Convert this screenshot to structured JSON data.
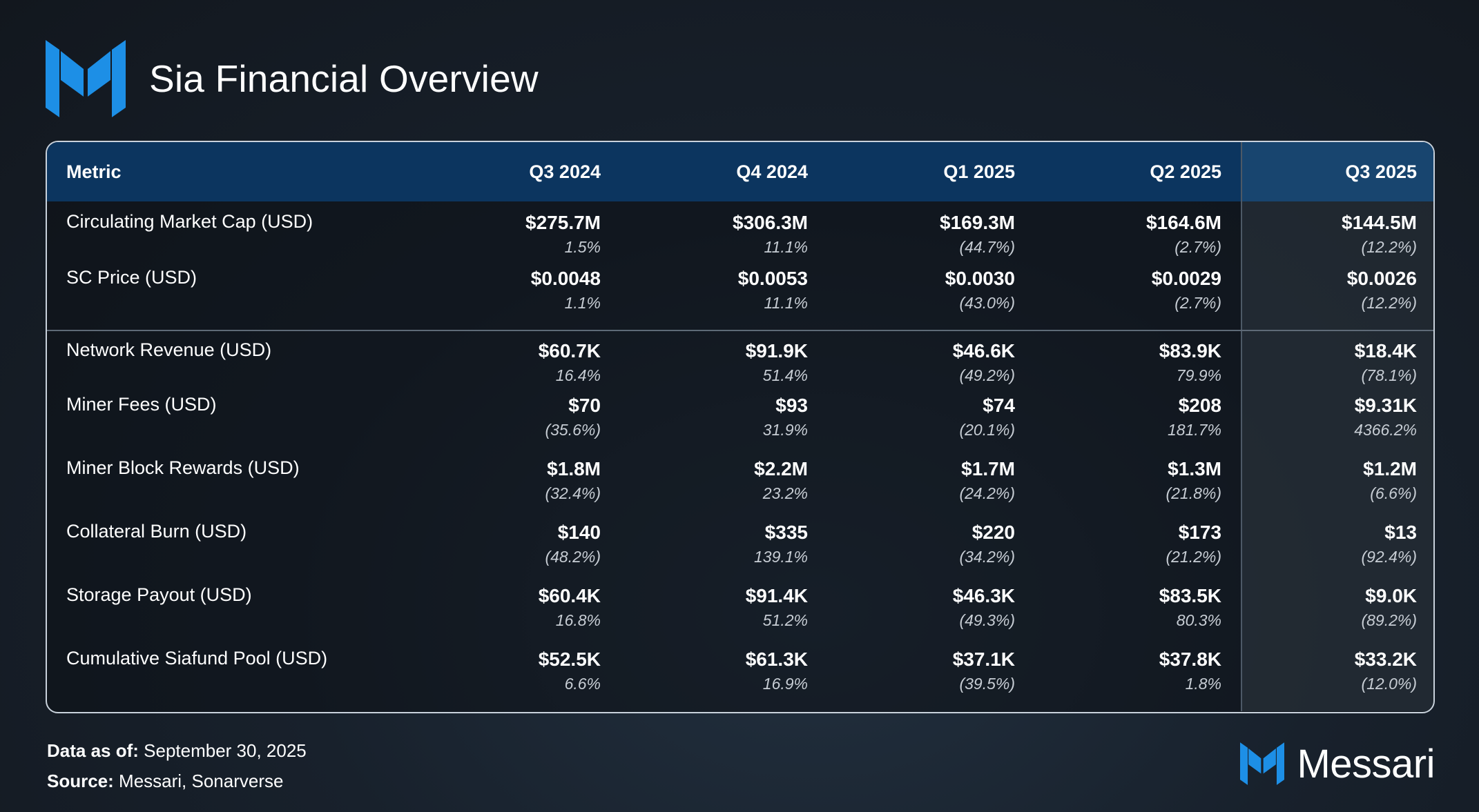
{
  "header": {
    "title": "Sia Financial Overview",
    "logo_icon": "messari-mark-icon"
  },
  "colors": {
    "accent": "#1d8fe6",
    "header_bg": "#0c355f",
    "header_highlight": "#18456f"
  },
  "chart_data": {
    "type": "table",
    "title": "Sia Financial Overview",
    "columns": [
      "Metric",
      "Q3 2024",
      "Q4 2024",
      "Q1 2025",
      "Q2 2025",
      "Q3 2025"
    ],
    "highlighted_column": "Q3 2025",
    "rows": [
      {
        "metric": "Circulating Market Cap (USD)",
        "values": [
          "$275.7M",
          "$306.3M",
          "$169.3M",
          "$164.6M",
          "$144.5M"
        ],
        "changes": [
          "1.5%",
          "11.1%",
          "(44.7%)",
          "(2.7%)",
          "(12.2%)"
        ]
      },
      {
        "metric": "SC Price (USD)",
        "values": [
          "$0.0048",
          "$0.0053",
          "$0.0030",
          "$0.0029",
          "$0.0026"
        ],
        "changes": [
          "1.1%",
          "11.1%",
          "(43.0%)",
          "(2.7%)",
          "(12.2%)"
        ]
      },
      {
        "metric": "Network Revenue (USD)",
        "values": [
          "$60.7K",
          "$91.9K",
          "$46.6K",
          "$83.9K",
          "$18.4K"
        ],
        "changes": [
          "16.4%",
          "51.4%",
          "(49.2%)",
          "79.9%",
          "(78.1%)"
        ]
      },
      {
        "metric": "Miner Fees (USD)",
        "values": [
          "$70",
          "$93",
          "$74",
          "$208",
          "$9.31K"
        ],
        "changes": [
          "(35.6%)",
          "31.9%",
          "(20.1%)",
          "181.7%",
          "4366.2%"
        ]
      },
      {
        "metric": "Miner Block Rewards (USD)",
        "values": [
          "$1.8M",
          "$2.2M",
          "$1.7M",
          "$1.3M",
          "$1.2M"
        ],
        "changes": [
          "(32.4%)",
          "23.2%",
          "(24.2%)",
          "(21.8%)",
          "(6.6%)"
        ]
      },
      {
        "metric": "Collateral Burn (USD)",
        "values": [
          "$140",
          "$335",
          "$220",
          "$173",
          "$13"
        ],
        "changes": [
          "(48.2%)",
          "139.1%",
          "(34.2%)",
          "(21.2%)",
          "(92.4%)"
        ]
      },
      {
        "metric": "Storage Payout (USD)",
        "values": [
          "$60.4K",
          "$91.4K",
          "$46.3K",
          "$83.5K",
          "$9.0K"
        ],
        "changes": [
          "16.8%",
          "51.2%",
          "(49.3%)",
          "80.3%",
          "(89.2%)"
        ]
      },
      {
        "metric": "Cumulative Siafund Pool (USD)",
        "values": [
          "$52.5K",
          "$61.3K",
          "$37.1K",
          "$37.8K",
          "$33.2K"
        ],
        "changes": [
          "6.6%",
          "16.9%",
          "(39.5%)",
          "1.8%",
          "(12.0%)"
        ]
      }
    ]
  },
  "footer": {
    "data_as_of_label": "Data as of:",
    "data_as_of_value": "September 30, 2025",
    "source_label": "Source:",
    "source_value": "Messari, Sonarverse"
  },
  "brand": {
    "name": "Messari",
    "icon": "messari-mark-icon"
  }
}
